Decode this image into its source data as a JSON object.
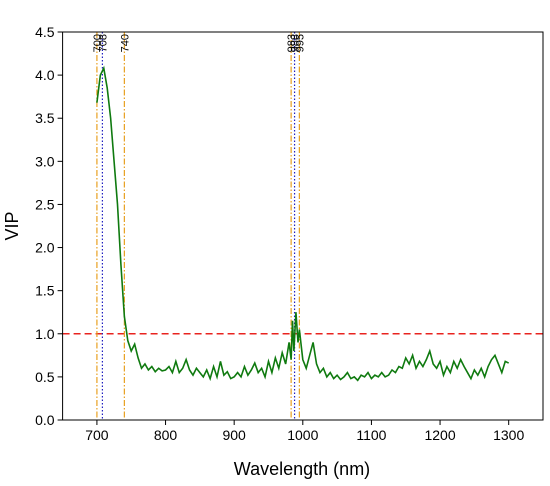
{
  "chart_data": {
    "type": "line",
    "xlabel": "Wavelength (nm)",
    "ylabel": "VIP",
    "xlim": [
      650,
      1350
    ],
    "ylim": [
      0,
      4.5
    ],
    "xticks": [
      700,
      800,
      900,
      1000,
      1100,
      1200,
      1300
    ],
    "yticks": [
      {
        "value": 0,
        "label": "0.0"
      },
      {
        "value": 0.5,
        "label": "0.5"
      },
      {
        "value": 1,
        "label": "1.0"
      },
      {
        "value": 1.5,
        "label": "1.5"
      },
      {
        "value": 2,
        "label": "2.0"
      },
      {
        "value": 2.5,
        "label": "2.5"
      },
      {
        "value": 3,
        "label": "3.0"
      },
      {
        "value": 3.5,
        "label": "3.5"
      },
      {
        "value": 4,
        "label": "4.0"
      },
      {
        "value": 4.5,
        "label": "4.5"
      }
    ],
    "threshold": {
      "value": 1.0,
      "color": "#e8231f"
    },
    "vlines": [
      {
        "value": 700,
        "color": "#e8a020"
      },
      {
        "value": 708,
        "color": "#2020c0"
      },
      {
        "value": 740,
        "color": "#e8a020"
      },
      {
        "value": 983,
        "color": "#e8a020"
      },
      {
        "value": 988,
        "color": "#2020c0"
      },
      {
        "value": 995,
        "color": "#e8a020"
      }
    ],
    "x": [
      700,
      705,
      710,
      715,
      720,
      725,
      730,
      735,
      740,
      745,
      750,
      755,
      760,
      765,
      770,
      775,
      780,
      785,
      790,
      795,
      800,
      805,
      810,
      815,
      820,
      825,
      830,
      835,
      840,
      845,
      850,
      855,
      860,
      865,
      870,
      875,
      880,
      885,
      890,
      895,
      900,
      905,
      910,
      915,
      920,
      925,
      930,
      935,
      940,
      945,
      950,
      955,
      960,
      965,
      970,
      975,
      980,
      983,
      985,
      987,
      990,
      993,
      995,
      1000,
      1005,
      1010,
      1015,
      1020,
      1025,
      1030,
      1035,
      1040,
      1045,
      1050,
      1055,
      1060,
      1065,
      1070,
      1075,
      1080,
      1085,
      1090,
      1095,
      1100,
      1105,
      1110,
      1115,
      1120,
      1125,
      1130,
      1135,
      1140,
      1145,
      1150,
      1155,
      1160,
      1165,
      1170,
      1175,
      1180,
      1185,
      1190,
      1195,
      1200,
      1205,
      1210,
      1215,
      1220,
      1225,
      1230,
      1235,
      1240,
      1245,
      1250,
      1255,
      1260,
      1265,
      1270,
      1275,
      1280,
      1285,
      1290,
      1295,
      1300
    ],
    "series": [
      {
        "color": "#0f7a0f",
        "values": [
          3.68,
          4.0,
          4.08,
          3.85,
          3.5,
          3.0,
          2.5,
          1.8,
          1.2,
          0.92,
          0.8,
          0.88,
          0.72,
          0.6,
          0.65,
          0.58,
          0.62,
          0.56,
          0.6,
          0.57,
          0.58,
          0.62,
          0.55,
          0.68,
          0.55,
          0.6,
          0.7,
          0.58,
          0.52,
          0.6,
          0.55,
          0.5,
          0.58,
          0.48,
          0.62,
          0.5,
          0.68,
          0.52,
          0.56,
          0.48,
          0.5,
          0.55,
          0.5,
          0.62,
          0.52,
          0.58,
          0.66,
          0.55,
          0.6,
          0.5,
          0.68,
          0.55,
          0.72,
          0.6,
          0.78,
          0.65,
          0.9,
          0.7,
          1.15,
          0.8,
          1.25,
          0.9,
          1.05,
          0.7,
          0.6,
          0.75,
          0.9,
          0.65,
          0.55,
          0.6,
          0.5,
          0.55,
          0.48,
          0.52,
          0.47,
          0.5,
          0.55,
          0.48,
          0.5,
          0.46,
          0.52,
          0.5,
          0.55,
          0.48,
          0.52,
          0.5,
          0.55,
          0.5,
          0.52,
          0.58,
          0.55,
          0.62,
          0.6,
          0.72,
          0.65,
          0.75,
          0.6,
          0.68,
          0.62,
          0.7,
          0.8,
          0.65,
          0.6,
          0.68,
          0.52,
          0.62,
          0.55,
          0.68,
          0.6,
          0.7,
          0.62,
          0.55,
          0.48,
          0.58,
          0.52,
          0.6,
          0.5,
          0.62,
          0.7,
          0.75,
          0.65,
          0.55,
          0.68,
          0.66
        ]
      }
    ]
  }
}
